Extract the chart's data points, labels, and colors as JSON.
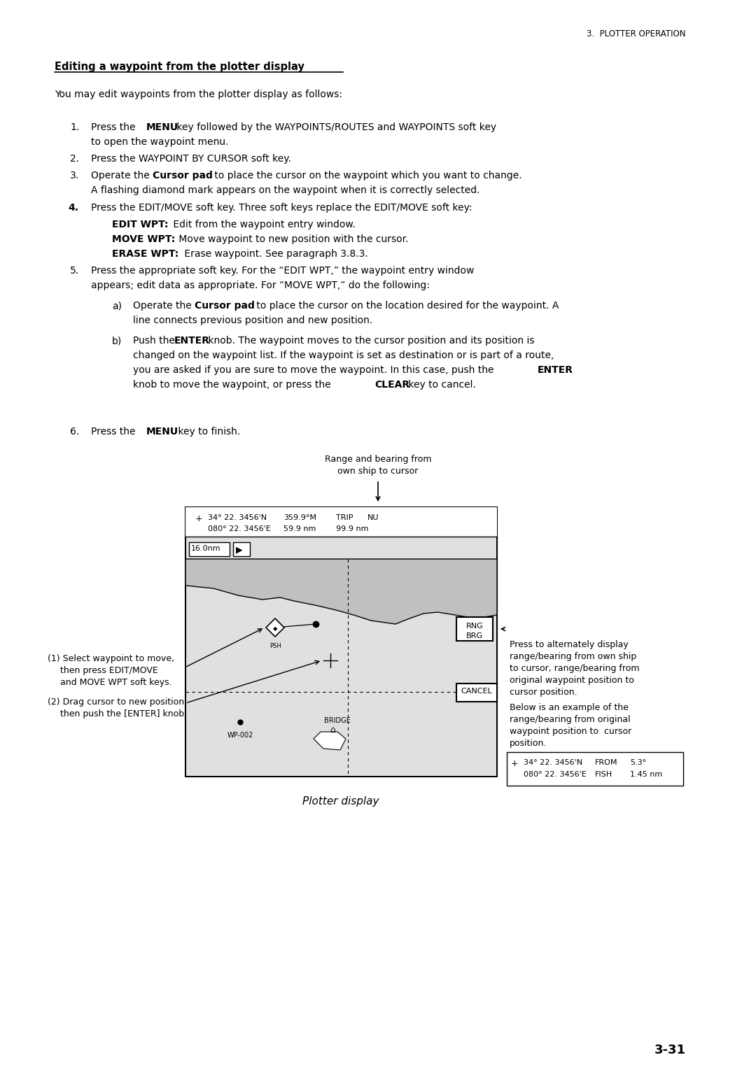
{
  "page_header": "3.  PLOTTER OPERATION",
  "section_title": "Editing a waypoint from the plotter display",
  "intro_text": "You may edit waypoints from the plotter display as follows:",
  "diagram_caption": "Plotter display",
  "page_number": "3-31",
  "bg_color": "#ffffff",
  "text_color": "#000000"
}
